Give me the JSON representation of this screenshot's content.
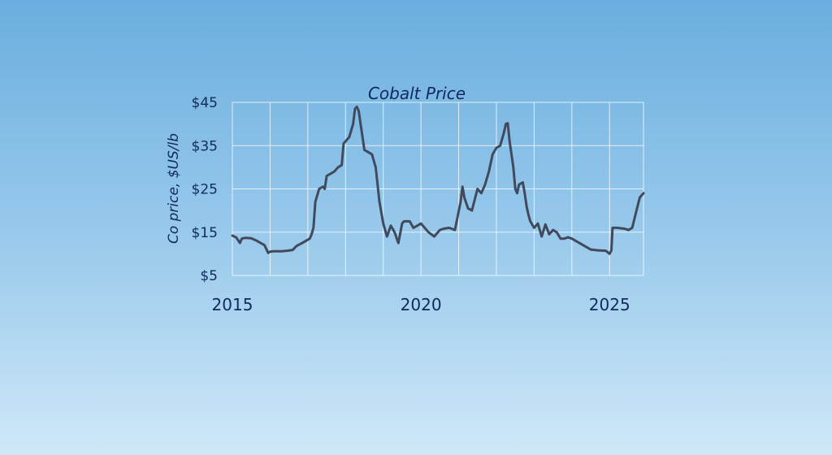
{
  "chart_data": {
    "type": "line",
    "title": "Cobalt Price",
    "ylabel": "Co price, $US/lb",
    "xlabel": "",
    "xlim": [
      2015,
      2025.9
    ],
    "ylim": [
      5,
      45
    ],
    "grid": true,
    "legend": "none",
    "x_ticks": [
      {
        "value": 2015,
        "label": "2015"
      },
      {
        "value": 2020,
        "label": "2020"
      },
      {
        "value": 2025,
        "label": "2025"
      }
    ],
    "x_gridlines": [
      2015,
      2016,
      2017,
      2018,
      2019,
      2020,
      2021,
      2022,
      2023,
      2024,
      2025
    ],
    "y_ticks": [
      {
        "value": 5,
        "label": "$5"
      },
      {
        "value": 15,
        "label": "$15"
      },
      {
        "value": 25,
        "label": "$25"
      },
      {
        "value": 35,
        "label": "$35"
      },
      {
        "value": 45,
        "label": "$45"
      }
    ],
    "series": [
      {
        "color": "#414a5c",
        "x": [
          2015.0,
          2015.1,
          2015.2,
          2015.25,
          2015.35,
          2015.5,
          2015.65,
          2015.75,
          2015.85,
          2015.95,
          2016.0,
          2016.1,
          2016.3,
          2016.45,
          2016.6,
          2016.7,
          2016.85,
          2016.95,
          2017.05,
          2017.1,
          2017.15,
          2017.2,
          2017.3,
          2017.4,
          2017.45,
          2017.5,
          2017.6,
          2017.7,
          2017.8,
          2017.9,
          2017.95,
          2018.0,
          2018.1,
          2018.2,
          2018.25,
          2018.3,
          2018.35,
          2018.4,
          2018.5,
          2018.6,
          2018.7,
          2018.8,
          2018.9,
          2018.95,
          2019.0,
          2019.1,
          2019.2,
          2019.3,
          2019.4,
          2019.5,
          2019.55,
          2019.7,
          2019.8,
          2019.9,
          2020.0,
          2020.2,
          2020.35,
          2020.5,
          2020.6,
          2020.75,
          2020.9,
          2021.05,
          2021.1,
          2021.15,
          2021.25,
          2021.35,
          2021.5,
          2021.6,
          2021.7,
          2021.8,
          2021.9,
          2022.0,
          2022.1,
          2022.2,
          2022.25,
          2022.3,
          2022.35,
          2022.4,
          2022.45,
          2022.5,
          2022.55,
          2022.6,
          2022.7,
          2022.75,
          2022.8,
          2022.85,
          2022.9,
          2023.0,
          2023.05,
          2023.1,
          2023.2,
          2023.3,
          2023.4,
          2023.5,
          2023.6,
          2023.7,
          2023.8,
          2023.9,
          2024.0,
          2024.2,
          2024.4,
          2024.5,
          2024.7,
          2024.9,
          2025.0,
          2025.05,
          2025.08,
          2025.2,
          2025.4,
          2025.5,
          2025.6,
          2025.7,
          2025.8,
          2025.9
        ],
        "values": [
          14.2,
          13.8,
          12.5,
          13.5,
          13.7,
          13.6,
          13.0,
          12.5,
          12.0,
          10.2,
          10.5,
          10.6,
          10.6,
          10.7,
          10.9,
          11.8,
          12.5,
          13.0,
          13.5,
          14.5,
          16.0,
          22.0,
          25.0,
          25.5,
          25.0,
          28.0,
          28.5,
          29.0,
          30.0,
          30.5,
          35.5,
          36.0,
          37.0,
          40.0,
          43.5,
          44.0,
          43.0,
          40.0,
          34.0,
          33.5,
          33.0,
          30.0,
          22.0,
          19.5,
          17.0,
          14.0,
          16.5,
          15.0,
          12.5,
          17.0,
          17.5,
          17.5,
          16.0,
          16.5,
          17.0,
          15.0,
          14.0,
          15.5,
          15.8,
          16.0,
          15.5,
          22.0,
          25.5,
          23.0,
          20.5,
          20.0,
          25.0,
          24.0,
          26.0,
          29.0,
          33.0,
          34.5,
          35.0,
          38.0,
          40.0,
          40.2,
          36.0,
          33.0,
          30.0,
          25.0,
          24.0,
          26.0,
          26.5,
          24.0,
          21.0,
          19.0,
          17.5,
          16.0,
          16.5,
          17.0,
          14.0,
          16.8,
          14.5,
          15.5,
          15.0,
          13.5,
          13.5,
          13.8,
          13.5,
          12.5,
          11.5,
          11.0,
          10.8,
          10.7,
          10.0,
          10.8,
          16.0,
          16.0,
          15.8,
          15.5,
          16.0,
          19.5,
          23.0,
          24.0
        ]
      }
    ]
  }
}
